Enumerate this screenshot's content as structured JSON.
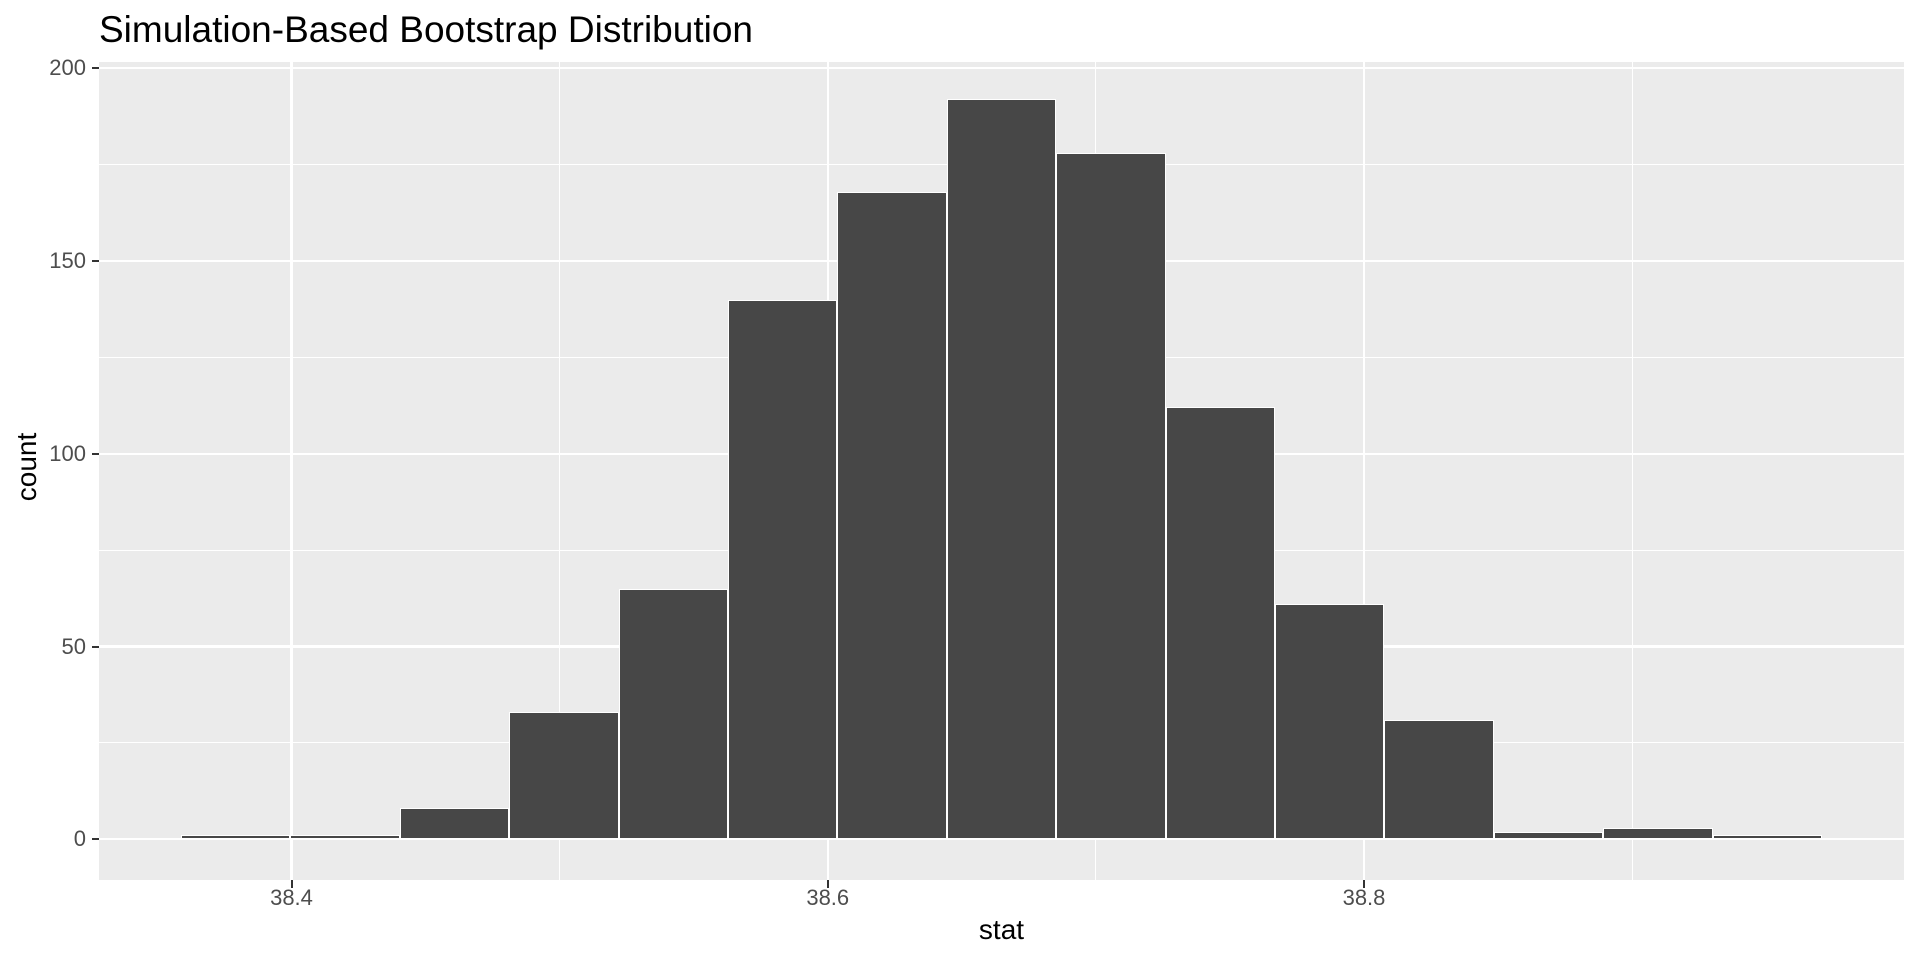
{
  "figure": {
    "title": "Simulation-Based Bootstrap Distribution"
  },
  "chart_data": {
    "type": "bar",
    "subtype": "histogram",
    "title": "Simulation-Based Bootstrap Distribution",
    "xlabel": "stat",
    "ylabel": "count",
    "bin_edges": [
      38.3588,
      38.3996,
      38.4404,
      38.4812,
      38.522,
      38.5628,
      38.6036,
      38.6444,
      38.6852,
      38.726,
      38.7668,
      38.8076,
      38.8484,
      38.8892,
      38.93,
      38.9708
    ],
    "bin_centers": [
      38.379,
      38.42,
      38.461,
      38.502,
      38.542,
      38.583,
      38.624,
      38.665,
      38.706,
      38.746,
      38.787,
      38.828,
      38.869,
      38.91,
      38.95
    ],
    "counts": [
      1,
      1,
      8,
      33,
      65,
      140,
      168,
      192,
      178,
      112,
      61,
      31,
      2,
      3,
      1
    ],
    "x_ticks": [
      38.4,
      38.6,
      38.8
    ],
    "x_tick_labels": [
      "38.4",
      "38.6",
      "38.8"
    ],
    "x_minor_gridlines": [
      38.5,
      38.7,
      38.9
    ],
    "y_ticks": [
      0,
      50,
      100,
      150,
      200
    ],
    "y_tick_labels": [
      "0",
      "50",
      "100",
      "150",
      "200"
    ],
    "y_minor_gridlines": [
      25,
      75,
      125,
      175
    ],
    "xlim": [
      38.3282,
      39.0014
    ],
    "ylim": [
      -10.56,
      201.6
    ],
    "grid": true,
    "legend": false,
    "colors": {
      "bar_fill": "#474747",
      "bar_outline": "#FFFFFF",
      "panel_background": "#EBEBEB",
      "gridline": "#FFFFFF",
      "tick_mark": "#333333",
      "tick_label": "#4D4D4D",
      "axis_title": "#000000",
      "plot_title": "#000000",
      "figure_background": "#FFFFFF"
    }
  }
}
